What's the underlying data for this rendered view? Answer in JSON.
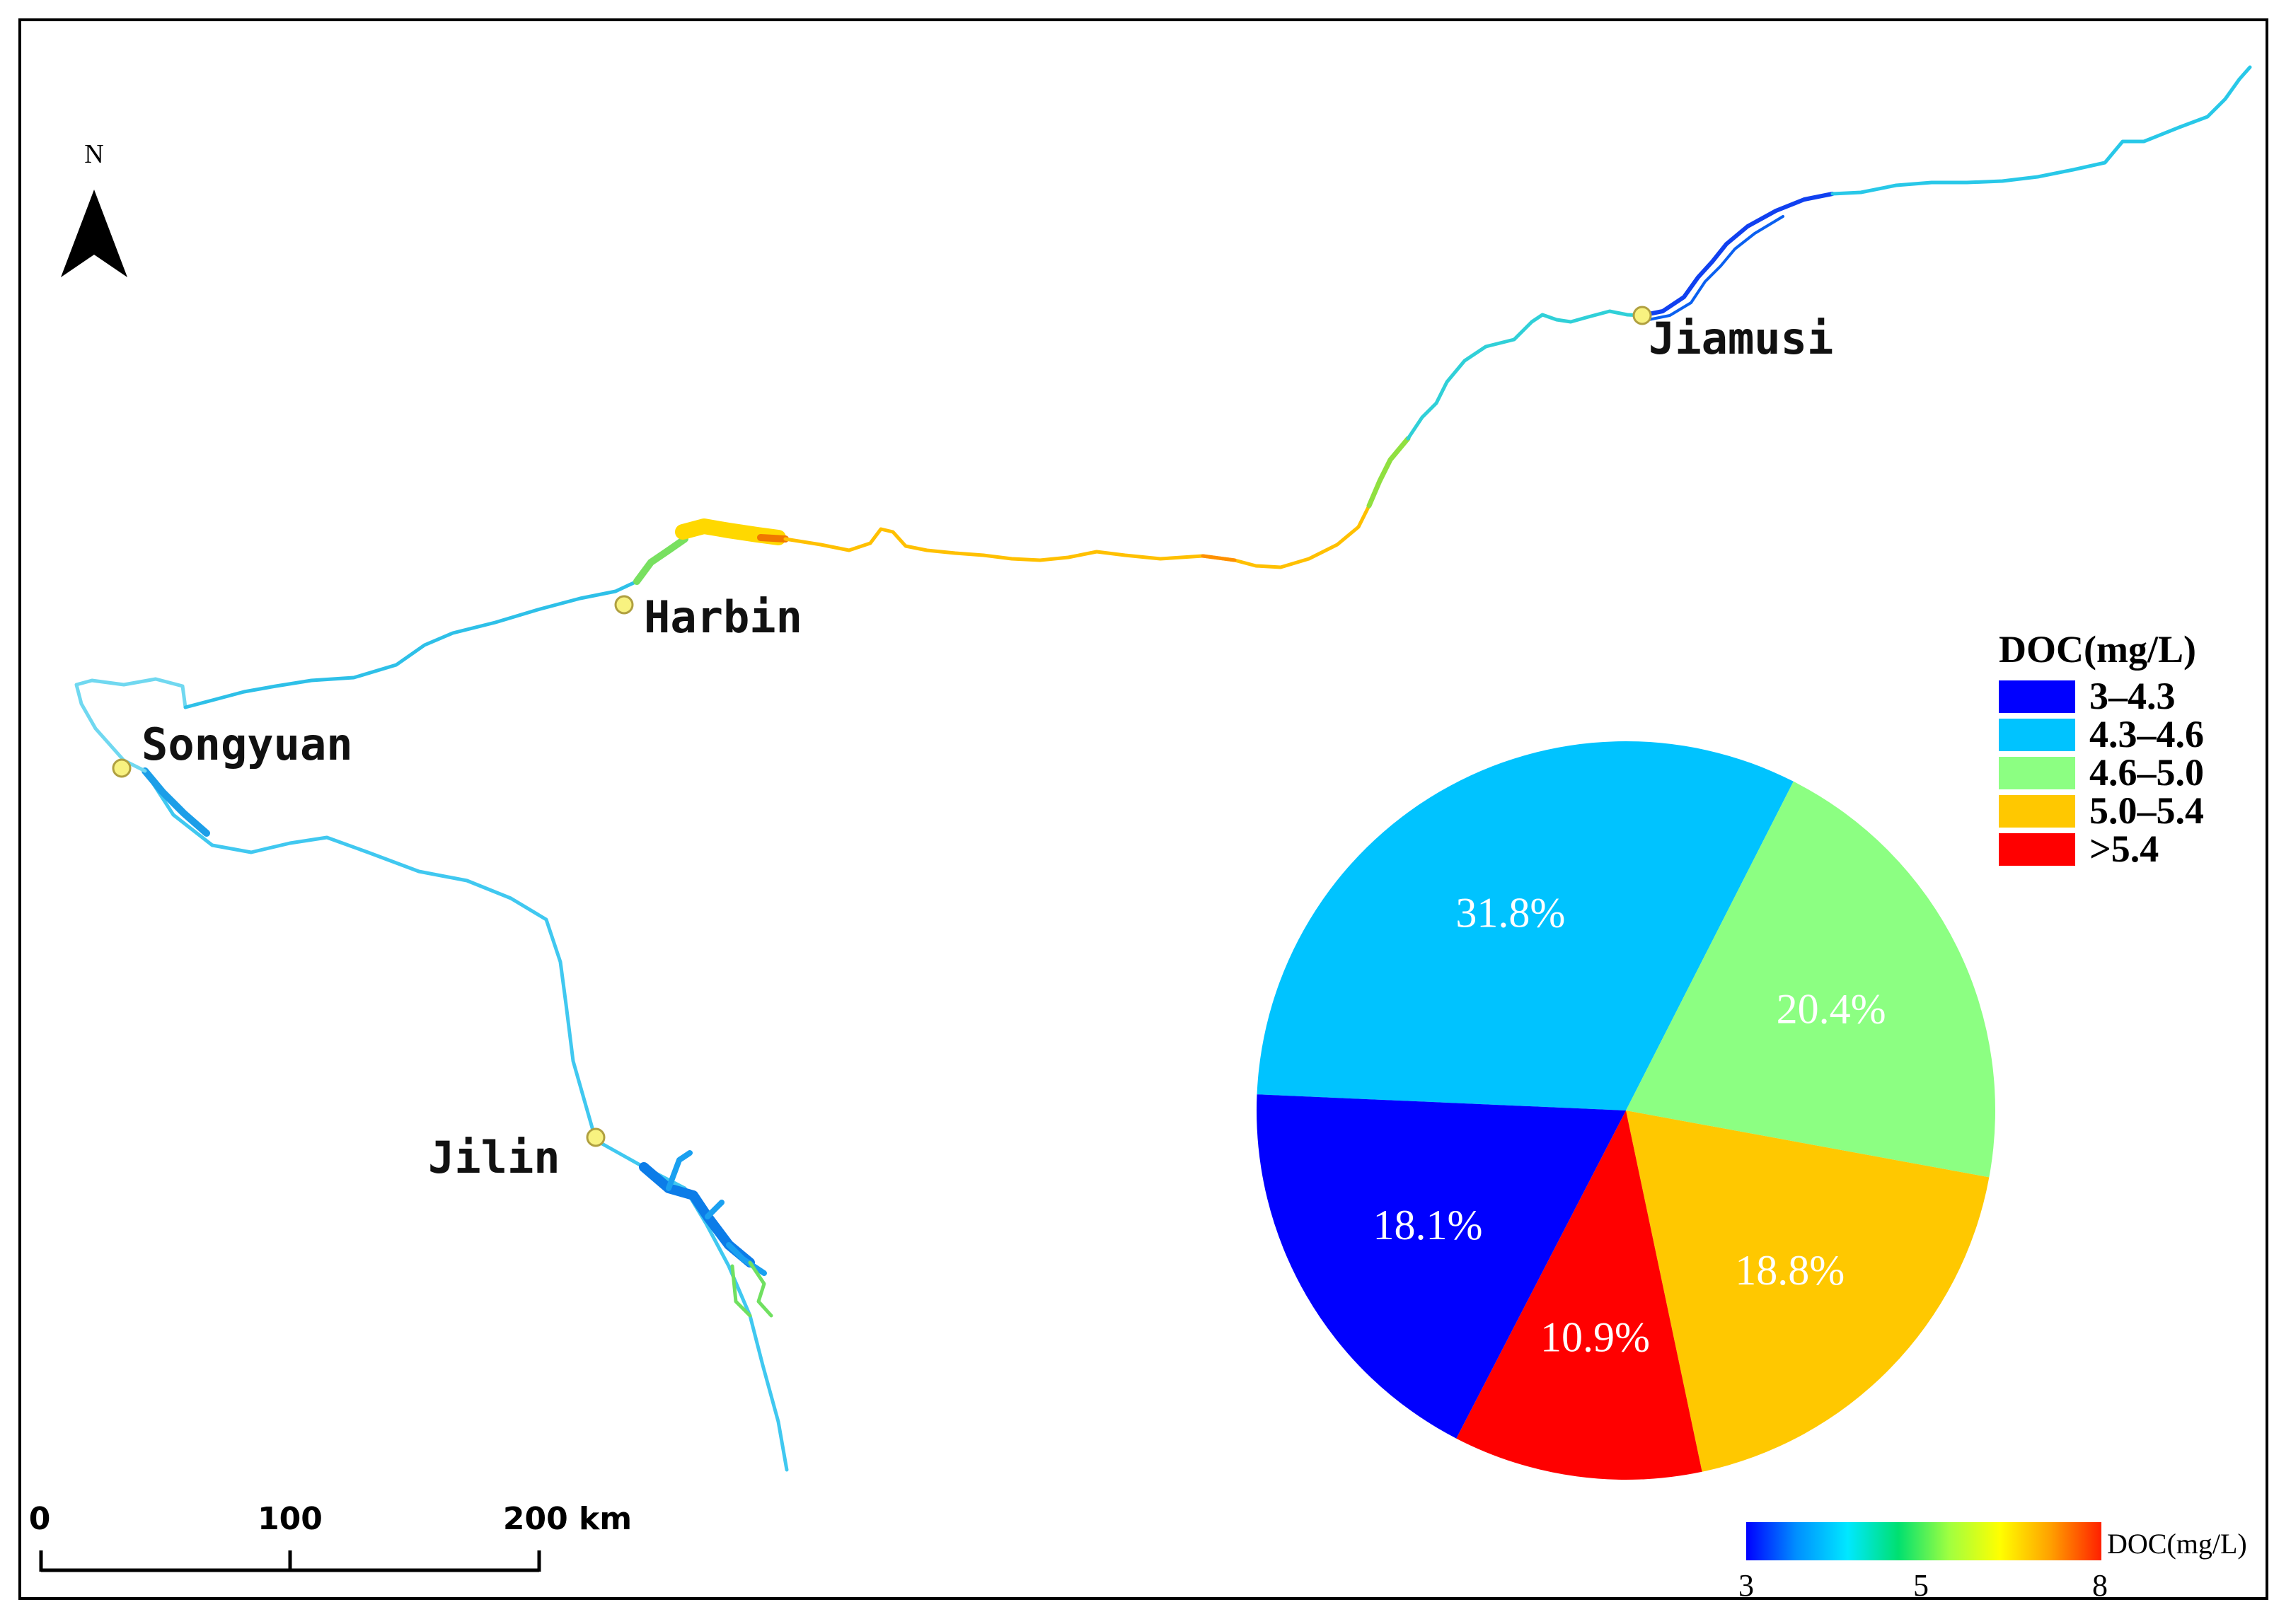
{
  "north_arrow": {
    "label": "N"
  },
  "cities": [
    {
      "id": "jiamusi",
      "name": "Jiamusi"
    },
    {
      "id": "harbin",
      "name": "Harbin"
    },
    {
      "id": "songyuan",
      "name": "Songyuan"
    },
    {
      "id": "jilin",
      "name": "Jilin"
    }
  ],
  "legend": {
    "title": "DOC(mg/L)",
    "items": [
      {
        "label": "3–4.3",
        "color": "#0000ff"
      },
      {
        "label": "4.3–4.6",
        "color": "#00c3ff"
      },
      {
        "label": "4.6–5.0",
        "color": "#8cff82"
      },
      {
        "label": "5.0–5.4",
        "color": "#ffc800"
      },
      {
        "label": ">5.4",
        "color": "#ff0000"
      }
    ]
  },
  "chart_data": {
    "type": "pie",
    "slices": [
      {
        "category": "4.3–4.6",
        "value": 31.8,
        "label": "31.8%",
        "color": "#00c3ff"
      },
      {
        "category": "4.6–5.0",
        "value": 20.4,
        "label": "20.4%",
        "color": "#8cff82"
      },
      {
        "category": "5.0–5.4",
        "value": 18.8,
        "label": "18.8%",
        "color": "#ffc800"
      },
      {
        "category": ">5.4",
        "value": 10.9,
        "label": "10.9%",
        "color": "#ff0000"
      },
      {
        "category": "3–4.3",
        "value": 18.1,
        "label": "18.1%",
        "color": "#0000ff"
      }
    ]
  },
  "scale_bar": {
    "labels": [
      "0",
      "100",
      "200 km"
    ]
  },
  "color_ramp": {
    "title": "DOC(mg/L)",
    "ticks": [
      "3",
      "5",
      "8"
    ],
    "colors": [
      "#0000ff",
      "#0090ff",
      "#00e8ff",
      "#00e070",
      "#a0ff40",
      "#ffff00",
      "#ffa000",
      "#ff2000"
    ]
  }
}
